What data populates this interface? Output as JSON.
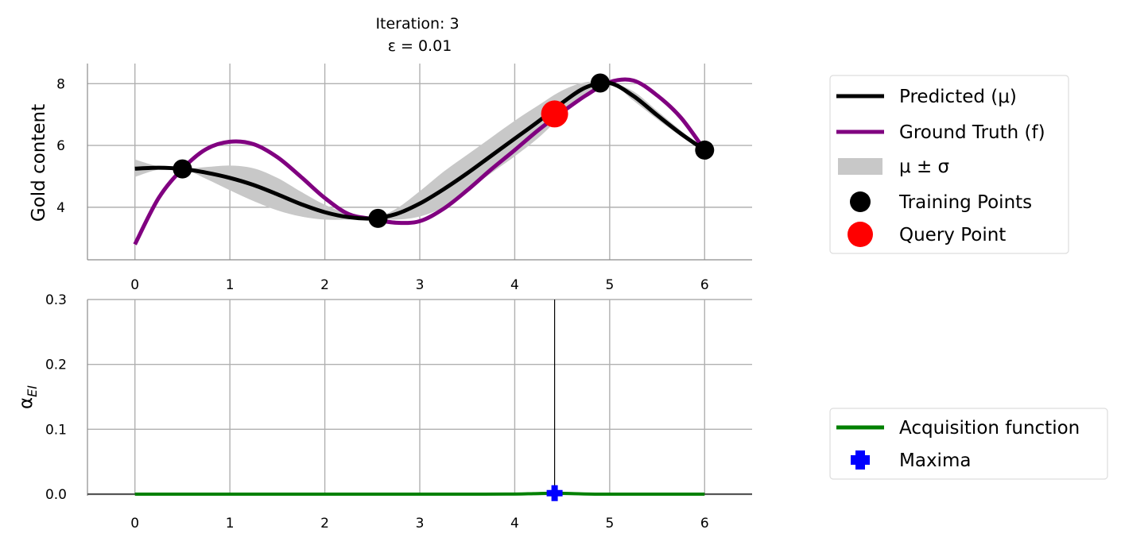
{
  "chart_data": [
    {
      "type": "line",
      "title_line1": "Iteration: 3",
      "title_line2": "ε = 0.01",
      "xlabel": "",
      "ylabel": "Gold content",
      "xlim": [
        -0.5,
        6.5
      ],
      "ylim": [
        2.3,
        8.65
      ],
      "xticks": [
        "0",
        "1",
        "2",
        "3",
        "4",
        "5",
        "6"
      ],
      "yticks": [
        "4",
        "6",
        "8"
      ],
      "grid": true,
      "x": [
        0,
        0.25,
        0.5,
        0.75,
        1,
        1.25,
        1.5,
        1.75,
        2,
        2.25,
        2.5,
        2.75,
        3,
        3.25,
        3.5,
        3.75,
        4,
        4.25,
        4.5,
        4.75,
        5,
        5.25,
        5.5,
        5.75,
        6
      ],
      "series": [
        {
          "name": "Predicted (μ)",
          "color": "#000000",
          "values": [
            5.25,
            5.28,
            5.24,
            5.12,
            4.95,
            4.72,
            4.42,
            4.1,
            3.84,
            3.68,
            3.64,
            3.78,
            4.12,
            4.58,
            5.1,
            5.66,
            6.22,
            6.78,
            7.38,
            7.88,
            8.02,
            7.6,
            6.98,
            6.38,
            5.85
          ]
        },
        {
          "name": "Ground Truth (f)",
          "color": "#800080",
          "values": [
            2.8,
            4.3,
            5.24,
            5.88,
            6.12,
            6.04,
            5.62,
            4.98,
            4.3,
            3.78,
            3.62,
            3.5,
            3.55,
            3.95,
            4.55,
            5.22,
            5.85,
            6.5,
            7.08,
            7.62,
            8.05,
            8.1,
            7.62,
            6.9,
            5.85
          ]
        }
      ],
      "band": {
        "name": "μ ± σ",
        "color": "#c8c8c8",
        "lower": [
          4.98,
          5.22,
          5.24,
          4.92,
          4.55,
          4.2,
          3.9,
          3.7,
          3.6,
          3.6,
          3.64,
          3.6,
          3.7,
          4.0,
          4.55,
          5.1,
          5.65,
          6.25,
          6.98,
          7.7,
          8.02,
          7.45,
          6.85,
          6.3,
          5.85
        ],
        "upper": [
          5.55,
          5.32,
          5.24,
          5.3,
          5.35,
          5.26,
          4.95,
          4.5,
          4.08,
          3.78,
          3.64,
          3.95,
          4.52,
          5.15,
          5.7,
          6.25,
          6.8,
          7.3,
          7.78,
          8.05,
          8.02,
          7.75,
          7.12,
          6.48,
          5.85
        ]
      },
      "training_points": {
        "name": "Training Points",
        "color": "#000000",
        "x": [
          0.5,
          2.56,
          4.9,
          6.0
        ],
        "y": [
          5.24,
          3.64,
          8.02,
          5.85
        ]
      },
      "query_point": {
        "name": "Query Point",
        "color": "#ff0000",
        "x": [
          4.42
        ],
        "y": [
          7.02
        ]
      },
      "legend": "right"
    },
    {
      "type": "line",
      "xlabel": "",
      "ylabel": "α_EI",
      "xlim": [
        -0.5,
        6.5
      ],
      "ylim": [
        0.0,
        0.3
      ],
      "xticks": [
        "0",
        "1",
        "2",
        "3",
        "4",
        "5",
        "6"
      ],
      "yticks": [
        "0.0",
        "0.1",
        "0.2",
        "0.3"
      ],
      "grid": true,
      "x": [
        0,
        0.5,
        1,
        1.5,
        2,
        2.5,
        3,
        3.5,
        4,
        4.2,
        4.42,
        4.6,
        4.9,
        5.5,
        6
      ],
      "series": [
        {
          "name": "Acquisition function",
          "color": "#008000",
          "values": [
            0.0,
            0.0,
            0.0,
            0.0,
            0.0,
            0.0,
            0.0,
            0.0,
            0.0002,
            0.0008,
            0.0015,
            0.0009,
            0.0,
            0.0,
            0.0
          ]
        }
      ],
      "maxima": {
        "name": "Maxima",
        "color": "#0000ff",
        "x": [
          4.42
        ],
        "y": [
          0.0015
        ]
      },
      "vline_x": 4.42,
      "legend": "right"
    }
  ]
}
